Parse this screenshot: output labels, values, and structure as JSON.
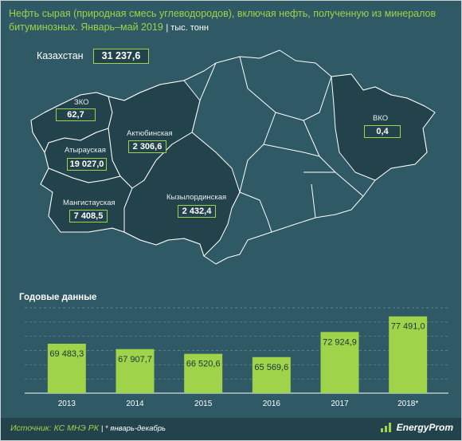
{
  "header": {
    "title": "Нефть сырая (природная смесь углеводородов), включая нефть, полученную из минералов битуминозных. Январь–май 2019",
    "unit": "| тыс. тонн"
  },
  "map": {
    "country": {
      "label": "Казахстан",
      "value": "31 237,6"
    },
    "regions": [
      {
        "name": "ЗКО",
        "value": "62,7"
      },
      {
        "name": "Актюбинская",
        "value": "2 306,6"
      },
      {
        "name": "Атырауская",
        "value": "19 027,0"
      },
      {
        "name": "Мангистауская",
        "value": "7 408,5"
      },
      {
        "name": "Кызылординская",
        "value": "2 432,4"
      },
      {
        "name": "ВКО",
        "value": "0,4"
      }
    ]
  },
  "section_title": "Годовые данные",
  "chart_data": {
    "type": "bar",
    "title": "Годовые данные",
    "categories": [
      "2013",
      "2014",
      "2015",
      "2016",
      "2017",
      "2018*"
    ],
    "values": [
      69483.3,
      67907.7,
      66520.6,
      65569.6,
      72924.9,
      77491.0
    ],
    "value_labels": [
      "69 483,3",
      "67 907,7",
      "66 520,6",
      "65 569,6",
      "72 924,9",
      "77 491,0"
    ],
    "ylim": [
      55000,
      80000
    ],
    "grid": true,
    "bar_color": "#9ed34a"
  },
  "footer": {
    "source": "Источник: КС МНЭ РК",
    "note": "| * январь-декабрь",
    "brand": "EnergyProm"
  }
}
